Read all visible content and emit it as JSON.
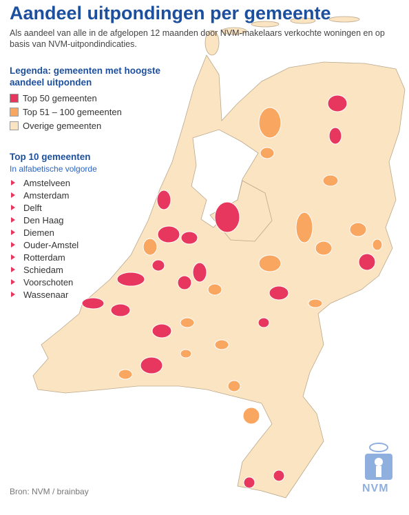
{
  "header": {
    "title": "Aandeel uitpondingen per gemeente",
    "subtitle": "Als aandeel van alle in de afgelopen 12 maanden door NVM-makelaars verkochte woningen en op basis van NVM-uitpondindicaties."
  },
  "legend": {
    "title": "Legenda: gemeenten met hoogste aandeel uitponden",
    "items": [
      {
        "label": "Top 50 gemeenten",
        "color": "#e8375f"
      },
      {
        "label": "Top 51 – 100 gemeenten",
        "color": "#f9a660"
      },
      {
        "label": "Overige gemeenten",
        "color": "#fbe4c2"
      }
    ]
  },
  "top10": {
    "title": "Top 10 gemeenten",
    "subtitle": "In alfabetische volgorde",
    "items": [
      "Amstelveen",
      "Amsterdam",
      "Delft",
      "Den Haag",
      "Diemen",
      "Ouder-Amstel",
      "Rotterdam",
      "Schiedam",
      "Voorschoten",
      "Wassenaar"
    ]
  },
  "source": "Bron: NVM / brainbay",
  "logo": "NVM"
}
